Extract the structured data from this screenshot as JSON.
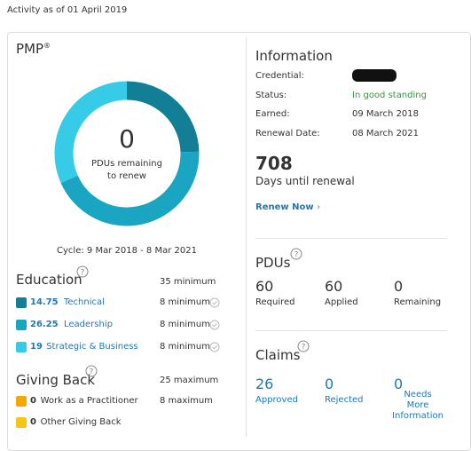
{
  "header": {
    "activity": "Activity as of 01 April 2019"
  },
  "certification": {
    "title": "PMP",
    "mark": "®",
    "donut": {
      "value": 0,
      "label": "PDUs remaining to renew"
    },
    "cycle": "Cycle: 9 Mar 2018 - 8 Mar 2021"
  },
  "education": {
    "title": "Education",
    "requirement": "35 minimum",
    "items": [
      {
        "value": 14.75,
        "label": "Technical",
        "requirement": "8 minimum",
        "color": "#137f96"
      },
      {
        "value": 26.25,
        "label": "Leadership",
        "requirement": "8 minimum",
        "color": "#1aa6c2"
      },
      {
        "value": 19,
        "label": "Strategic & Business",
        "requirement": "8 minimum",
        "color": "#36cbe6"
      }
    ]
  },
  "giving_back": {
    "title": "Giving Back",
    "requirement": "25 maximum",
    "items": [
      {
        "value": 0,
        "label": "Work as a Practitioner",
        "requirement": "8 maximum",
        "color": "#f2a900"
      },
      {
        "value": 0,
        "label": "Other Giving Back",
        "color": "#f5c518"
      }
    ]
  },
  "information": {
    "title": "Information",
    "rows": [
      {
        "label": "Credential:"
      },
      {
        "label": "Status:",
        "value": "In good standing"
      },
      {
        "label": "Earned:",
        "value": "09 March 2018"
      },
      {
        "label": "Renewal Date:",
        "value": "08 March 2021"
      }
    ]
  },
  "renewal": {
    "days": 708,
    "label": "Days until renewal",
    "action": "Renew Now"
  },
  "pdus": {
    "title": "PDUs",
    "stats": [
      {
        "value": 60,
        "label": "Required"
      },
      {
        "value": 60,
        "label": "Applied"
      },
      {
        "value": 0,
        "label": "Remaining"
      }
    ]
  },
  "claims": {
    "title": "Claims",
    "stats": [
      {
        "value": 26,
        "label": "Approved"
      },
      {
        "value": 0,
        "label": "Rejected"
      },
      {
        "value": 0,
        "label": "Needs More Information"
      }
    ]
  }
}
